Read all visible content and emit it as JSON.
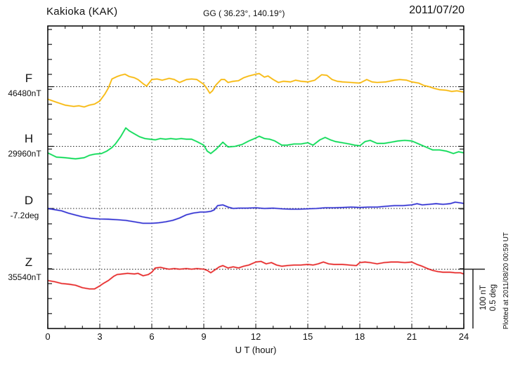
{
  "header": {
    "station": "Kakioka (KAK)",
    "coordinates": "GG ( 36.23°, 140.19°)",
    "date": "2011/07/20"
  },
  "footnote": "Plotted at 2011/08/20 00:59 UT",
  "scale_bar": {
    "nt_label": "100 nT",
    "deg_label": "0.5 deg"
  },
  "x_axis": {
    "label": "U T (hour)",
    "tick_labels": [
      "0",
      "3",
      "6",
      "9",
      "12",
      "15",
      "18",
      "21",
      "24"
    ]
  },
  "chart_data": {
    "type": "line",
    "title": "Kakioka (KAK) magnetogram",
    "xlabel": "U T (hour)",
    "x_range": [
      0,
      24
    ],
    "x_major_ticks": [
      0,
      3,
      6,
      9,
      12,
      15,
      18,
      21,
      24
    ],
    "x_minor_tick_step": 1,
    "grid": "dotted vertical lines every 3 h; dotted horizontal baseline per channel",
    "legend_position": "left margin channel labels",
    "scale": {
      "nT_per_division": 100,
      "deg_per_division": 0.5
    },
    "series": [
      {
        "name": "F",
        "unit": "nT",
        "baseline": 46480,
        "baseline_label": "46480nT",
        "color": "#f7b500",
        "points": [
          [
            0,
            -21
          ],
          [
            0.5,
            -26
          ],
          [
            1,
            -31
          ],
          [
            1.5,
            -33
          ],
          [
            1.8,
            -32
          ],
          [
            2.1,
            -34
          ],
          [
            2.4,
            -31
          ],
          [
            2.7,
            -29
          ],
          [
            3,
            -24
          ],
          [
            3.3,
            -12
          ],
          [
            3.5,
            -2
          ],
          [
            3.7,
            13
          ],
          [
            4,
            17
          ],
          [
            4.2,
            19
          ],
          [
            4.45,
            21
          ],
          [
            4.7,
            17
          ],
          [
            5,
            15
          ],
          [
            5.2,
            12
          ],
          [
            5.5,
            5
          ],
          [
            5.7,
            1
          ],
          [
            6,
            12
          ],
          [
            6.3,
            13
          ],
          [
            6.6,
            11
          ],
          [
            7,
            14
          ],
          [
            7.3,
            12
          ],
          [
            7.6,
            7
          ],
          [
            8,
            12
          ],
          [
            8.3,
            13
          ],
          [
            8.6,
            12
          ],
          [
            9,
            4
          ],
          [
            9.2,
            -4
          ],
          [
            9.35,
            -11
          ],
          [
            9.5,
            -7
          ],
          [
            9.7,
            3
          ],
          [
            10,
            12
          ],
          [
            10.2,
            12
          ],
          [
            10.4,
            7
          ],
          [
            10.7,
            9
          ],
          [
            11,
            10
          ],
          [
            11.3,
            15
          ],
          [
            11.6,
            18
          ],
          [
            12,
            21
          ],
          [
            12.2,
            22
          ],
          [
            12.5,
            16
          ],
          [
            12.7,
            18
          ],
          [
            13,
            12
          ],
          [
            13.3,
            7
          ],
          [
            13.6,
            9
          ],
          [
            14,
            8
          ],
          [
            14.3,
            11
          ],
          [
            14.6,
            9
          ],
          [
            15,
            8
          ],
          [
            15.4,
            11
          ],
          [
            15.8,
            20
          ],
          [
            16.1,
            19
          ],
          [
            16.4,
            12
          ],
          [
            16.7,
            9
          ],
          [
            17,
            8
          ],
          [
            17.5,
            7
          ],
          [
            18,
            6
          ],
          [
            18.4,
            12
          ],
          [
            18.7,
            8
          ],
          [
            19,
            7
          ],
          [
            19.5,
            8
          ],
          [
            20,
            11
          ],
          [
            20.3,
            12
          ],
          [
            20.7,
            11
          ],
          [
            21,
            8
          ],
          [
            21.4,
            6
          ],
          [
            21.7,
            2
          ],
          [
            22,
            0
          ],
          [
            22.3,
            -3
          ],
          [
            22.6,
            -5
          ],
          [
            23,
            -6
          ],
          [
            23.3,
            -8
          ],
          [
            23.6,
            -7
          ],
          [
            24,
            -9
          ]
        ]
      },
      {
        "name": "H",
        "unit": "nT",
        "baseline": 29960,
        "baseline_label": "29960nT",
        "color": "#00d94e",
        "points": [
          [
            0,
            -11
          ],
          [
            0.5,
            -18
          ],
          [
            1,
            -19
          ],
          [
            1.6,
            -21
          ],
          [
            2.1,
            -19
          ],
          [
            2.4,
            -15
          ],
          [
            2.7,
            -13
          ],
          [
            3.1,
            -12
          ],
          [
            3.4,
            -8
          ],
          [
            3.7,
            -2
          ],
          [
            3.9,
            4
          ],
          [
            4.2,
            16
          ],
          [
            4.5,
            31
          ],
          [
            4.7,
            26
          ],
          [
            5,
            21
          ],
          [
            5.3,
            16
          ],
          [
            5.6,
            13
          ],
          [
            5.9,
            12
          ],
          [
            6.2,
            11
          ],
          [
            6.5,
            13
          ],
          [
            6.8,
            12
          ],
          [
            7.1,
            13
          ],
          [
            7.4,
            12
          ],
          [
            7.7,
            13
          ],
          [
            8,
            12
          ],
          [
            8.3,
            12
          ],
          [
            8.6,
            8
          ],
          [
            9,
            2
          ],
          [
            9.2,
            -8
          ],
          [
            9.4,
            -12
          ],
          [
            9.7,
            -5
          ],
          [
            10.1,
            7
          ],
          [
            10.4,
            -1
          ],
          [
            10.8,
            0
          ],
          [
            11.2,
            3
          ],
          [
            11.6,
            9
          ],
          [
            12,
            14
          ],
          [
            12.2,
            17
          ],
          [
            12.5,
            13
          ],
          [
            12.8,
            12
          ],
          [
            13.1,
            9
          ],
          [
            13.5,
            2
          ],
          [
            13.8,
            2
          ],
          [
            14.2,
            4
          ],
          [
            14.6,
            4
          ],
          [
            15,
            6
          ],
          [
            15.3,
            2
          ],
          [
            15.7,
            11
          ],
          [
            16,
            15
          ],
          [
            16.3,
            11
          ],
          [
            16.6,
            8
          ],
          [
            17,
            6
          ],
          [
            17.4,
            4
          ],
          [
            17.7,
            2
          ],
          [
            18,
            1
          ],
          [
            18.3,
            8
          ],
          [
            18.6,
            10
          ],
          [
            19,
            5
          ],
          [
            19.4,
            5
          ],
          [
            19.8,
            7
          ],
          [
            20.2,
            9
          ],
          [
            20.6,
            10
          ],
          [
            21,
            9
          ],
          [
            21.4,
            4
          ],
          [
            21.8,
            -1
          ],
          [
            22.2,
            -6
          ],
          [
            22.6,
            -6
          ],
          [
            23,
            -8
          ],
          [
            23.4,
            -12
          ],
          [
            23.7,
            -9
          ],
          [
            24,
            -11
          ]
        ]
      },
      {
        "name": "D",
        "unit": "deg",
        "baseline": -7.2,
        "baseline_label": "-7.2deg",
        "color": "#2b2bd1",
        "points": [
          [
            0,
            0
          ],
          [
            0.4,
            -0.01
          ],
          [
            0.8,
            -0.02
          ],
          [
            1.2,
            -0.04
          ],
          [
            1.6,
            -0.055
          ],
          [
            2,
            -0.07
          ],
          [
            2.5,
            -0.083
          ],
          [
            3,
            -0.088
          ],
          [
            3.5,
            -0.09
          ],
          [
            4,
            -0.094
          ],
          [
            4.5,
            -0.1
          ],
          [
            5,
            -0.112
          ],
          [
            5.5,
            -0.124
          ],
          [
            6,
            -0.124
          ],
          [
            6.4,
            -0.12
          ],
          [
            6.8,
            -0.112
          ],
          [
            7.2,
            -0.1
          ],
          [
            7.6,
            -0.08
          ],
          [
            8,
            -0.053
          ],
          [
            8.4,
            -0.038
          ],
          [
            8.8,
            -0.03
          ],
          [
            9.1,
            -0.03
          ],
          [
            9.4,
            -0.024
          ],
          [
            9.6,
            -0.012
          ],
          [
            9.8,
            0.024
          ],
          [
            10.1,
            0.03
          ],
          [
            10.4,
            0.012
          ],
          [
            10.7,
            0
          ],
          [
            11,
            0.003
          ],
          [
            11.5,
            0.003
          ],
          [
            12,
            0.006
          ],
          [
            12.5,
            0
          ],
          [
            13,
            0.003
          ],
          [
            13.5,
            -0.003
          ],
          [
            14,
            -0.006
          ],
          [
            14.5,
            -0.006
          ],
          [
            15,
            -0.003
          ],
          [
            15.5,
            0
          ],
          [
            16,
            0.006
          ],
          [
            16.5,
            0.006
          ],
          [
            17,
            0.008
          ],
          [
            17.5,
            0.012
          ],
          [
            18,
            0.008
          ],
          [
            18.5,
            0.012
          ],
          [
            19,
            0.012
          ],
          [
            19.5,
            0.018
          ],
          [
            20,
            0.024
          ],
          [
            20.5,
            0.024
          ],
          [
            21,
            0.03
          ],
          [
            21.3,
            0.04
          ],
          [
            21.6,
            0.03
          ],
          [
            22,
            0.035
          ],
          [
            22.4,
            0.04
          ],
          [
            22.8,
            0.035
          ],
          [
            23.2,
            0.04
          ],
          [
            23.5,
            0.053
          ],
          [
            23.8,
            0.047
          ],
          [
            24,
            0.042
          ]
        ]
      },
      {
        "name": "Z",
        "unit": "nT",
        "baseline": 35540,
        "baseline_label": "35540nT",
        "color": "#e62222",
        "points": [
          [
            0,
            -19
          ],
          [
            0.4,
            -21
          ],
          [
            0.8,
            -24
          ],
          [
            1.2,
            -25
          ],
          [
            1.6,
            -27
          ],
          [
            2,
            -31
          ],
          [
            2.4,
            -33
          ],
          [
            2.7,
            -33
          ],
          [
            3,
            -28
          ],
          [
            3.2,
            -24
          ],
          [
            3.5,
            -19
          ],
          [
            3.8,
            -12
          ],
          [
            4,
            -9
          ],
          [
            4.3,
            -8
          ],
          [
            4.6,
            -7
          ],
          [
            5,
            -8
          ],
          [
            5.2,
            -7
          ],
          [
            5.5,
            -11
          ],
          [
            5.8,
            -9
          ],
          [
            6,
            -5
          ],
          [
            6.2,
            2
          ],
          [
            6.5,
            3
          ],
          [
            6.8,
            1
          ],
          [
            7,
            0
          ],
          [
            7.3,
            1
          ],
          [
            7.6,
            0
          ],
          [
            8,
            1
          ],
          [
            8.3,
            0
          ],
          [
            8.6,
            1
          ],
          [
            9,
            0
          ],
          [
            9.2,
            -2
          ],
          [
            9.4,
            -6
          ],
          [
            9.7,
            0
          ],
          [
            9.9,
            4
          ],
          [
            10.1,
            6
          ],
          [
            10.4,
            2
          ],
          [
            10.7,
            4
          ],
          [
            11,
            2
          ],
          [
            11.3,
            5
          ],
          [
            11.6,
            7
          ],
          [
            12,
            12
          ],
          [
            12.3,
            13
          ],
          [
            12.6,
            9
          ],
          [
            12.9,
            11
          ],
          [
            13.2,
            7
          ],
          [
            13.5,
            5
          ],
          [
            13.8,
            6
          ],
          [
            14.2,
            7
          ],
          [
            14.6,
            7
          ],
          [
            15,
            8
          ],
          [
            15.3,
            7
          ],
          [
            15.6,
            9
          ],
          [
            15.9,
            12
          ],
          [
            16.2,
            9
          ],
          [
            16.5,
            8
          ],
          [
            17,
            8
          ],
          [
            17.4,
            7
          ],
          [
            17.8,
            6
          ],
          [
            18,
            11
          ],
          [
            18.3,
            12
          ],
          [
            18.6,
            11
          ],
          [
            19,
            9
          ],
          [
            19.4,
            11
          ],
          [
            19.8,
            12
          ],
          [
            20.2,
            12
          ],
          [
            20.6,
            11
          ],
          [
            21,
            12
          ],
          [
            21.3,
            8
          ],
          [
            21.6,
            5
          ],
          [
            21.9,
            1
          ],
          [
            22.2,
            -2
          ],
          [
            22.5,
            -4
          ],
          [
            22.8,
            -5
          ],
          [
            23.2,
            -5
          ],
          [
            23.5,
            -6
          ],
          [
            23.8,
            -6
          ],
          [
            24,
            -8
          ]
        ]
      }
    ]
  }
}
